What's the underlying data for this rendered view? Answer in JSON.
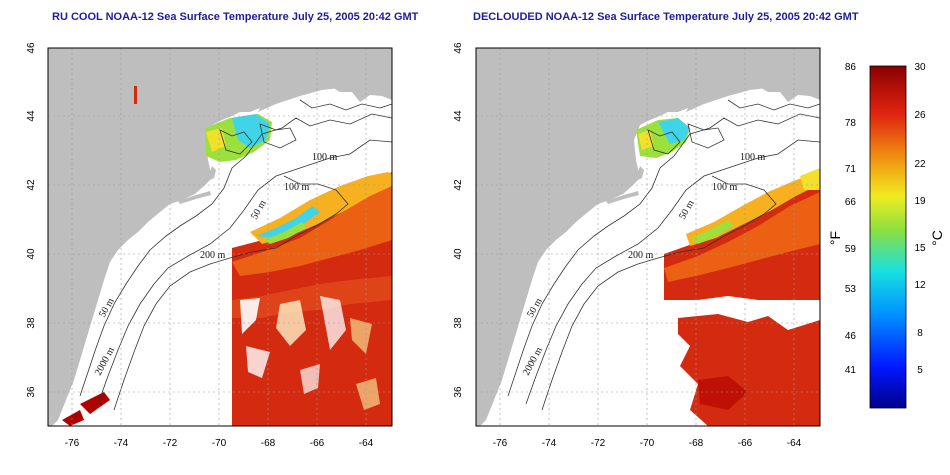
{
  "panels": [
    {
      "title": "RU COOL NOAA-12 Sea Surface Temperature July 25, 2005 20:42 GMT",
      "x_ticks": [
        "-76",
        "-74",
        "-72",
        "-70",
        "-68",
        "-66",
        "-64"
      ],
      "y_ticks": [
        "36",
        "38",
        "40",
        "42",
        "44",
        "46"
      ],
      "contour_labels": [
        "100 m",
        "100 m",
        "50 m",
        "200 m",
        "50 m",
        "2000 m"
      ]
    },
    {
      "title": "DECLOUDED NOAA-12 Sea Surface Temperature July 25, 2005 20:42 GMT",
      "x_ticks": [
        "-76",
        "-74",
        "-72",
        "-70",
        "-68",
        "-66",
        "-64"
      ],
      "y_ticks": [
        "36",
        "38",
        "40",
        "42",
        "44",
        "46"
      ],
      "contour_labels": [
        "100 m",
        "100 m",
        "50 m",
        "200 m",
        "50 m",
        "2000 m"
      ]
    }
  ],
  "colorbar": {
    "fahrenheit_ticks": [
      "86",
      "78",
      "71",
      "66",
      "59",
      "53",
      "46",
      "41"
    ],
    "celsius_ticks": [
      "30",
      "26",
      "22",
      "19",
      "15",
      "12",
      "8",
      "5"
    ],
    "fahrenheit_unit": "°F",
    "celsius_unit": "°C"
  },
  "colors": {
    "land": "#bebebe",
    "ocean_background": "#ffffff",
    "title": "#1e1e9a",
    "warm": "#d42a10",
    "hot": "#b00000",
    "gulf_orange": "#f06a14",
    "cool_cyan": "#3fd4e8",
    "cool_green": "#9be03c"
  }
}
